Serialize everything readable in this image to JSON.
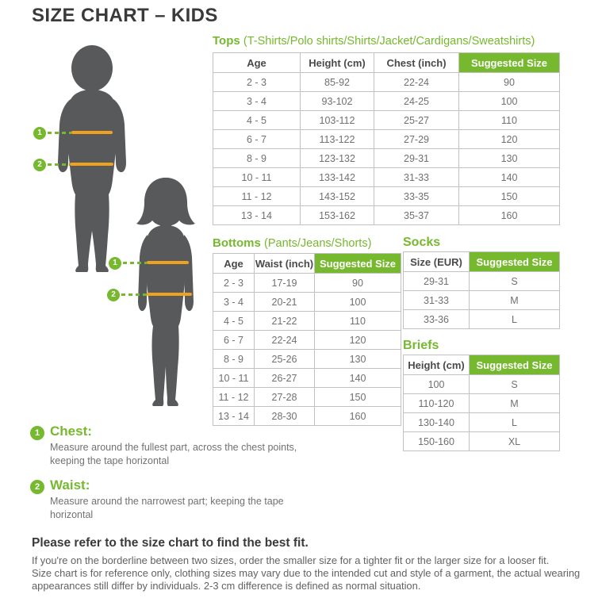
{
  "title": "SIZE CHART – KIDS",
  "colors": {
    "accent_green": "#76b82e",
    "orange": "#f0a21f",
    "silhouette_gray": "#58595b",
    "header_text": "#4a4a4c",
    "cell_text": "#707072",
    "title_text": "#3a3a3c",
    "border": "#c2c2c2"
  },
  "figure": {
    "chest_marker": "1",
    "waist_marker": "2"
  },
  "sections": {
    "tops": {
      "heading": "Tops",
      "subheading": "(T-Shirts/Polo shirts/Shirts/Jacket/Cardigans/Sweatshirts)",
      "columns": [
        "Age",
        "Height (cm)",
        "Chest (inch)",
        "Suggested Size"
      ],
      "rows": [
        [
          "2 - 3",
          "85-92",
          "22-24",
          "90"
        ],
        [
          "3 - 4",
          "93-102",
          "24-25",
          "100"
        ],
        [
          "4 - 5",
          "103-112",
          "25-27",
          "110"
        ],
        [
          "6 - 7",
          "113-122",
          "27-29",
          "120"
        ],
        [
          "8 - 9",
          "123-132",
          "29-31",
          "130"
        ],
        [
          "10 - 11",
          "133-142",
          "31-33",
          "140"
        ],
        [
          "11 - 12",
          "143-152",
          "33-35",
          "150"
        ],
        [
          "13 - 14",
          "153-162",
          "35-37",
          "160"
        ]
      ]
    },
    "bottoms": {
      "heading": "Bottoms",
      "subheading": "(Pants/Jeans/Shorts)",
      "columns": [
        "Age",
        "Waist (inch)",
        "Suggested Size"
      ],
      "rows": [
        [
          "2 - 3",
          "17-19",
          "90"
        ],
        [
          "3 - 4",
          "20-21",
          "100"
        ],
        [
          "4 - 5",
          "21-22",
          "110"
        ],
        [
          "6 - 7",
          "22-24",
          "120"
        ],
        [
          "8 - 9",
          "25-26",
          "130"
        ],
        [
          "10 - 11",
          "26-27",
          "140"
        ],
        [
          "11 - 12",
          "27-28",
          "150"
        ],
        [
          "13 - 14",
          "28-30",
          "160"
        ]
      ]
    },
    "socks": {
      "heading": "Socks",
      "columns": [
        "Size (EUR)",
        "Suggested Size"
      ],
      "rows": [
        [
          "29-31",
          "S"
        ],
        [
          "31-33",
          "M"
        ],
        [
          "33-36",
          "L"
        ]
      ]
    },
    "briefs": {
      "heading": "Briefs",
      "columns": [
        "Height (cm)",
        "Suggested Size"
      ],
      "rows": [
        [
          "100",
          "S"
        ],
        [
          "110-120",
          "M"
        ],
        [
          "130-140",
          "L"
        ],
        [
          "150-160",
          "XL"
        ]
      ]
    }
  },
  "notes": [
    {
      "number": "1",
      "label": "Chest:",
      "text": "Measure around the fullest part, across the chest points,\nkeeping the tape horizontal"
    },
    {
      "number": "2",
      "label": "Waist:",
      "text": "Measure around the narrowest part; keeping the tape\nhorizontal"
    }
  ],
  "footer": {
    "heading": "Please refer to the size chart to find the best fit.",
    "line1": "If you're on the borderline between two sizes, order the smaller size for a tighter fit or the larger size for a looser fit.",
    "line2": "Size chart is for reference only, clothing sizes may vary due to the intended cut and style of a garment, the actual wearing\nappearances still differ by individuals. 2-3 cm difference is defined as normal situation."
  }
}
